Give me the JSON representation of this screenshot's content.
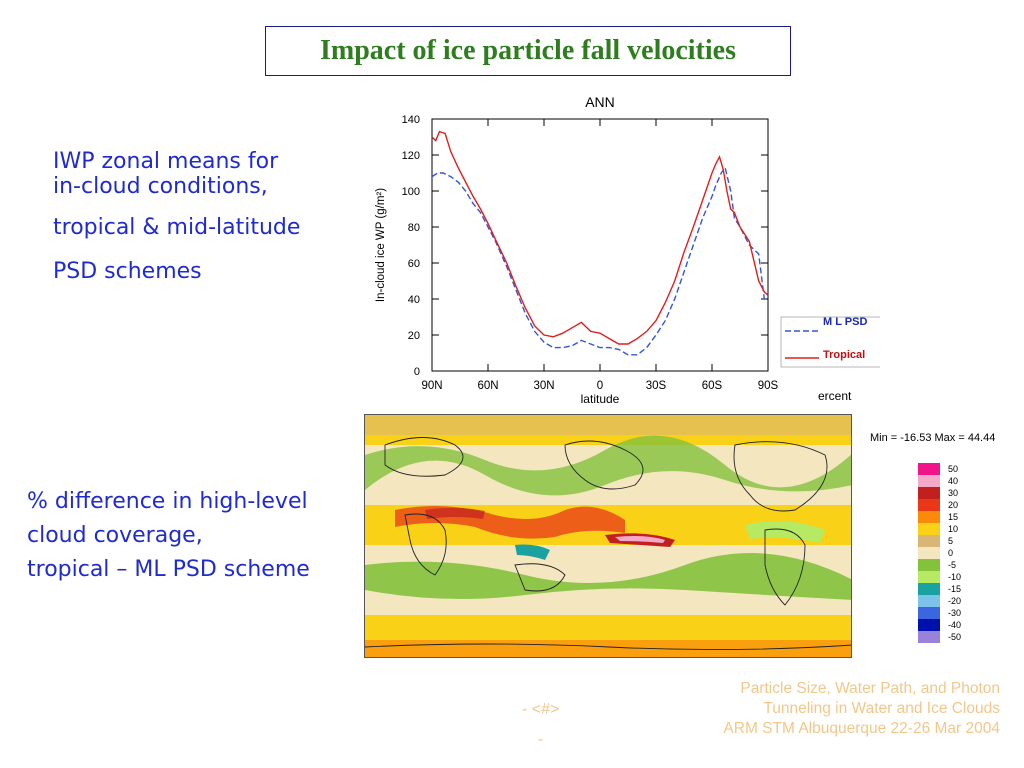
{
  "slide": {
    "title": "Impact of ice particle fall velocities",
    "text_iwp": [
      "IWP zonal means for",
      "in-cloud conditions,",
      "tropical & mid-latitude",
      "PSD schemes"
    ],
    "text_diff": [
      "% difference in high-level",
      "cloud coverage,",
      "tropical – ML PSD scheme"
    ],
    "footer": [
      "Particle Size, Water Path, and Photon",
      "Tunneling in Water and Ice Clouds",
      "ARM STM Albuquerque 22-26 Mar 2004"
    ],
    "page_number": [
      "- <#>",
      "-"
    ],
    "cut_text": "ercent"
  },
  "chart_data": [
    {
      "type": "line",
      "title": "ANN",
      "xlabel": "latitude",
      "ylabel": "In-cloud ice WP (g/m²)",
      "xlim": [
        90,
        -90
      ],
      "ylim": [
        0,
        140
      ],
      "yticks": [
        0,
        20,
        40,
        60,
        80,
        100,
        120,
        140
      ],
      "xticks": [
        {
          "v": 90,
          "label": "90N"
        },
        {
          "v": 60,
          "label": "60N"
        },
        {
          "v": 30,
          "label": "30N"
        },
        {
          "v": 0,
          "label": "0"
        },
        {
          "v": -30,
          "label": "30S"
        },
        {
          "v": -60,
          "label": "60S"
        },
        {
          "v": -90,
          "label": "90S"
        }
      ],
      "legend_position": "right",
      "series": [
        {
          "name": "M L  PSD",
          "color": "#3355dd",
          "style": "dashed",
          "x": [
            90,
            87,
            84,
            80,
            76,
            72,
            68,
            64,
            60,
            56,
            50,
            45,
            40,
            35,
            30,
            25,
            20,
            15,
            10,
            5,
            0,
            -5,
            -10,
            -15,
            -20,
            -25,
            -30,
            -35,
            -40,
            -45,
            -50,
            -55,
            -60,
            -62,
            -65,
            -67,
            -70,
            -72,
            -75,
            -80,
            -85,
            -88,
            -90
          ],
          "values": [
            108,
            110,
            110,
            108,
            105,
            100,
            93,
            88,
            80,
            72,
            58,
            45,
            32,
            22,
            16,
            13,
            13,
            14,
            17,
            15,
            13,
            13,
            12,
            9,
            9,
            13,
            20,
            28,
            40,
            55,
            70,
            85,
            97,
            103,
            110,
            113,
            100,
            85,
            80,
            70,
            65,
            40,
            39
          ]
        },
        {
          "name": "Tropical",
          "color": "#e01e1e",
          "style": "solid",
          "x": [
            90,
            88,
            86,
            83,
            80,
            76,
            72,
            68,
            64,
            60,
            56,
            50,
            45,
            40,
            35,
            30,
            25,
            20,
            15,
            10,
            5,
            0,
            -5,
            -10,
            -15,
            -20,
            -25,
            -30,
            -35,
            -40,
            -45,
            -50,
            -55,
            -60,
            -62,
            -64,
            -66,
            -68,
            -70,
            -72,
            -75,
            -80,
            -85,
            -88,
            -90
          ],
          "values": [
            130,
            128,
            133,
            132,
            122,
            113,
            105,
            97,
            90,
            82,
            73,
            60,
            47,
            35,
            25,
            20,
            19,
            21,
            24,
            27,
            22,
            21,
            18,
            15,
            15,
            18,
            22,
            28,
            38,
            50,
            66,
            80,
            95,
            110,
            115,
            119,
            112,
            100,
            90,
            88,
            80,
            72,
            50,
            44,
            42
          ]
        }
      ]
    },
    {
      "type": "heatmap",
      "stats": "Min = -16.53 Max =  44.44",
      "colorbar": [
        {
          "label": "50",
          "color": "#f0158a"
        },
        {
          "label": "40",
          "color": "#f4a9c8"
        },
        {
          "label": "30",
          "color": "#c21f1f"
        },
        {
          "label": "20",
          "color": "#e83818"
        },
        {
          "label": "15",
          "color": "#fb8a0a"
        },
        {
          "label": "10",
          "color": "#f9d218"
        },
        {
          "label": "5",
          "color": "#d9b676"
        },
        {
          "label": "0",
          "color": "#f4e7c0"
        },
        {
          "label": "-5",
          "color": "#84c23c"
        },
        {
          "label": "-10",
          "color": "#b6ea62"
        },
        {
          "label": "-15",
          "color": "#1aa2a0"
        },
        {
          "label": "-20",
          "color": "#7cc3ea"
        },
        {
          "label": "-30",
          "color": "#3a66e0"
        },
        {
          "label": "-40",
          "color": "#0010aa"
        },
        {
          "label": "-50",
          "color": "#9a82da"
        }
      ]
    }
  ]
}
